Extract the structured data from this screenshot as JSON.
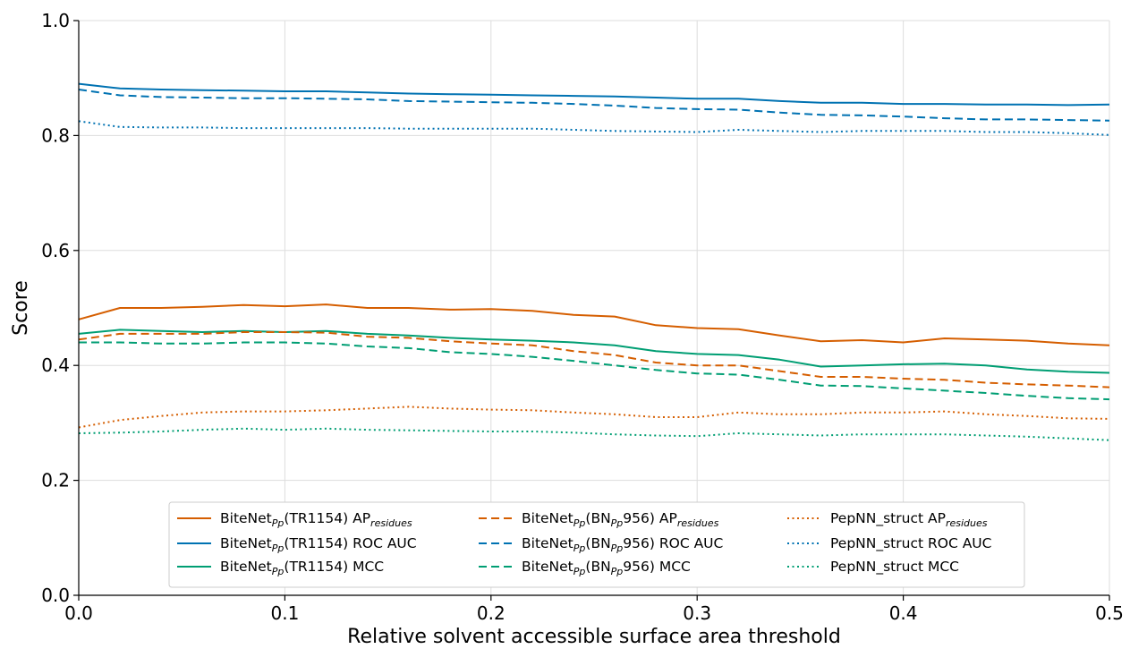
{
  "chart_data": {
    "type": "line",
    "title": "",
    "xlabel": "Relative solvent accessible surface area threshold",
    "ylabel": "Score",
    "xlim": [
      0.0,
      0.5
    ],
    "ylim": [
      0.0,
      1.0
    ],
    "xticks": [
      "0.0",
      "0.1",
      "0.2",
      "0.3",
      "0.4",
      "0.5"
    ],
    "yticks": [
      "0.0",
      "0.2",
      "0.4",
      "0.6",
      "0.8",
      "1.0"
    ],
    "grid": true,
    "legend_position": "lower center",
    "x": [
      0.0,
      0.02,
      0.04,
      0.06,
      0.08,
      0.1,
      0.12,
      0.14,
      0.16,
      0.18,
      0.2,
      0.22,
      0.24,
      0.26,
      0.28,
      0.3,
      0.32,
      0.34,
      0.36,
      0.38,
      0.4,
      0.42,
      0.44,
      0.46,
      0.48,
      0.5
    ],
    "series": [
      {
        "name": "BiteNet_Pp(TR1154) AP_residues",
        "label_parts": [
          "BiteNet",
          "Pp",
          "(TR1154) AP",
          "residues"
        ],
        "color": "#d55e00",
        "style": "solid",
        "values": [
          0.48,
          0.5,
          0.5,
          0.502,
          0.505,
          0.503,
          0.506,
          0.5,
          0.5,
          0.497,
          0.498,
          0.495,
          0.488,
          0.485,
          0.47,
          0.465,
          0.463,
          0.452,
          0.442,
          0.444,
          0.44,
          0.447,
          0.445,
          0.443,
          0.438,
          0.435
        ]
      },
      {
        "name": "BiteNet_Pp(TR1154) ROC AUC",
        "label_parts": [
          "BiteNet",
          "Pp",
          "(TR1154) ROC AUC",
          ""
        ],
        "color": "#0072b2",
        "style": "solid",
        "values": [
          0.89,
          0.882,
          0.88,
          0.879,
          0.878,
          0.877,
          0.877,
          0.875,
          0.873,
          0.872,
          0.871,
          0.87,
          0.869,
          0.868,
          0.866,
          0.864,
          0.864,
          0.86,
          0.857,
          0.857,
          0.855,
          0.855,
          0.854,
          0.854,
          0.853,
          0.854
        ]
      },
      {
        "name": "BiteNet_Pp(TR1154) MCC",
        "label_parts": [
          "BiteNet",
          "Pp",
          "(TR1154) MCC",
          ""
        ],
        "color": "#009e73",
        "style": "solid",
        "values": [
          0.455,
          0.462,
          0.46,
          0.458,
          0.46,
          0.458,
          0.46,
          0.455,
          0.452,
          0.448,
          0.445,
          0.443,
          0.44,
          0.435,
          0.425,
          0.42,
          0.418,
          0.41,
          0.398,
          0.4,
          0.402,
          0.403,
          0.4,
          0.393,
          0.389,
          0.387
        ]
      },
      {
        "name": "BiteNet_Pp(BN_Pp956) AP_residues",
        "label_parts": [
          "BiteNet",
          "Pp",
          "(BN",
          "Pp",
          "956) AP",
          "residues"
        ],
        "color": "#d55e00",
        "style": "dashed",
        "values": [
          0.445,
          0.455,
          0.455,
          0.455,
          0.458,
          0.458,
          0.457,
          0.45,
          0.448,
          0.442,
          0.438,
          0.435,
          0.425,
          0.418,
          0.405,
          0.4,
          0.4,
          0.39,
          0.38,
          0.38,
          0.377,
          0.375,
          0.37,
          0.367,
          0.365,
          0.362
        ]
      },
      {
        "name": "BiteNet_Pp(BN_Pp956) ROC AUC",
        "label_parts": [
          "BiteNet",
          "Pp",
          "(BN",
          "Pp",
          "956) ROC AUC",
          ""
        ],
        "color": "#0072b2",
        "style": "dashed",
        "values": [
          0.88,
          0.87,
          0.867,
          0.866,
          0.865,
          0.865,
          0.864,
          0.863,
          0.86,
          0.859,
          0.858,
          0.857,
          0.855,
          0.852,
          0.848,
          0.846,
          0.845,
          0.84,
          0.836,
          0.835,
          0.833,
          0.83,
          0.828,
          0.828,
          0.827,
          0.826
        ]
      },
      {
        "name": "BiteNet_Pp(BN_Pp956) MCC",
        "label_parts": [
          "BiteNet",
          "Pp",
          "(BN",
          "Pp",
          "956) MCC",
          ""
        ],
        "color": "#009e73",
        "style": "dashed",
        "values": [
          0.44,
          0.44,
          0.438,
          0.438,
          0.44,
          0.44,
          0.438,
          0.433,
          0.43,
          0.423,
          0.42,
          0.415,
          0.408,
          0.4,
          0.392,
          0.386,
          0.384,
          0.375,
          0.365,
          0.364,
          0.36,
          0.356,
          0.352,
          0.347,
          0.343,
          0.341
        ]
      },
      {
        "name": "PepNN_struct AP_residues",
        "label_parts": [
          "PepNN_struct AP",
          "residues"
        ],
        "color": "#d55e00",
        "style": "dotted",
        "values": [
          0.292,
          0.305,
          0.312,
          0.318,
          0.32,
          0.32,
          0.322,
          0.325,
          0.328,
          0.325,
          0.323,
          0.322,
          0.318,
          0.315,
          0.31,
          0.31,
          0.318,
          0.315,
          0.315,
          0.318,
          0.318,
          0.32,
          0.315,
          0.312,
          0.308,
          0.307
        ]
      },
      {
        "name": "PepNN_struct ROC AUC",
        "label_parts": [
          "PepNN_struct ROC AUC",
          ""
        ],
        "color": "#0072b2",
        "style": "dotted",
        "values": [
          0.825,
          0.815,
          0.814,
          0.814,
          0.813,
          0.813,
          0.813,
          0.813,
          0.812,
          0.812,
          0.812,
          0.812,
          0.81,
          0.808,
          0.807,
          0.806,
          0.81,
          0.808,
          0.806,
          0.808,
          0.808,
          0.808,
          0.806,
          0.806,
          0.804,
          0.801
        ]
      },
      {
        "name": "PepNN_struct MCC",
        "label_parts": [
          "PepNN_struct MCC",
          ""
        ],
        "color": "#009e73",
        "style": "dotted",
        "values": [
          0.282,
          0.283,
          0.285,
          0.288,
          0.29,
          0.288,
          0.29,
          0.288,
          0.287,
          0.286,
          0.285,
          0.285,
          0.283,
          0.28,
          0.278,
          0.277,
          0.282,
          0.28,
          0.278,
          0.28,
          0.28,
          0.28,
          0.278,
          0.276,
          0.273,
          0.27
        ]
      }
    ]
  }
}
